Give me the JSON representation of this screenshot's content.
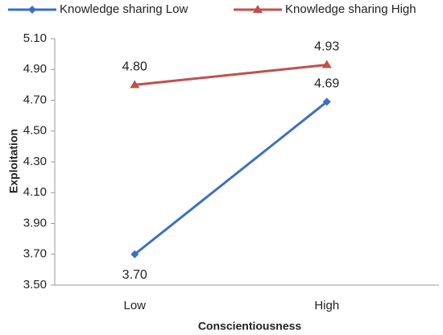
{
  "chart_data": {
    "type": "line",
    "categories": [
      "Low",
      "High"
    ],
    "series": [
      {
        "name": "Knowledge sharing Low",
        "color": "#3a6fc4",
        "marker": "diamond",
        "values": [
          3.7,
          4.69
        ],
        "value_labels": [
          "3.70",
          "4.69"
        ]
      },
      {
        "name": "Knowledge sharing High",
        "color": "#c0504d",
        "marker": "triangle",
        "values": [
          4.8,
          4.93
        ],
        "value_labels": [
          "4.80",
          "4.93"
        ]
      }
    ],
    "ylim": [
      3.5,
      5.1
    ],
    "yticks": [
      {
        "value": 3.5,
        "label": "3.50"
      },
      {
        "value": 3.7,
        "label": "3.70"
      },
      {
        "value": 3.9,
        "label": "3.90"
      },
      {
        "value": 4.1,
        "label": "4.10"
      },
      {
        "value": 4.3,
        "label": "4.30"
      },
      {
        "value": 4.5,
        "label": "4.50"
      },
      {
        "value": 4.7,
        "label": "4.70"
      },
      {
        "value": 4.9,
        "label": "4.90"
      },
      {
        "value": 5.1,
        "label": "5.10"
      }
    ],
    "x_label": "Conscientiousness",
    "y_label": "Exploitation",
    "grid": false
  }
}
